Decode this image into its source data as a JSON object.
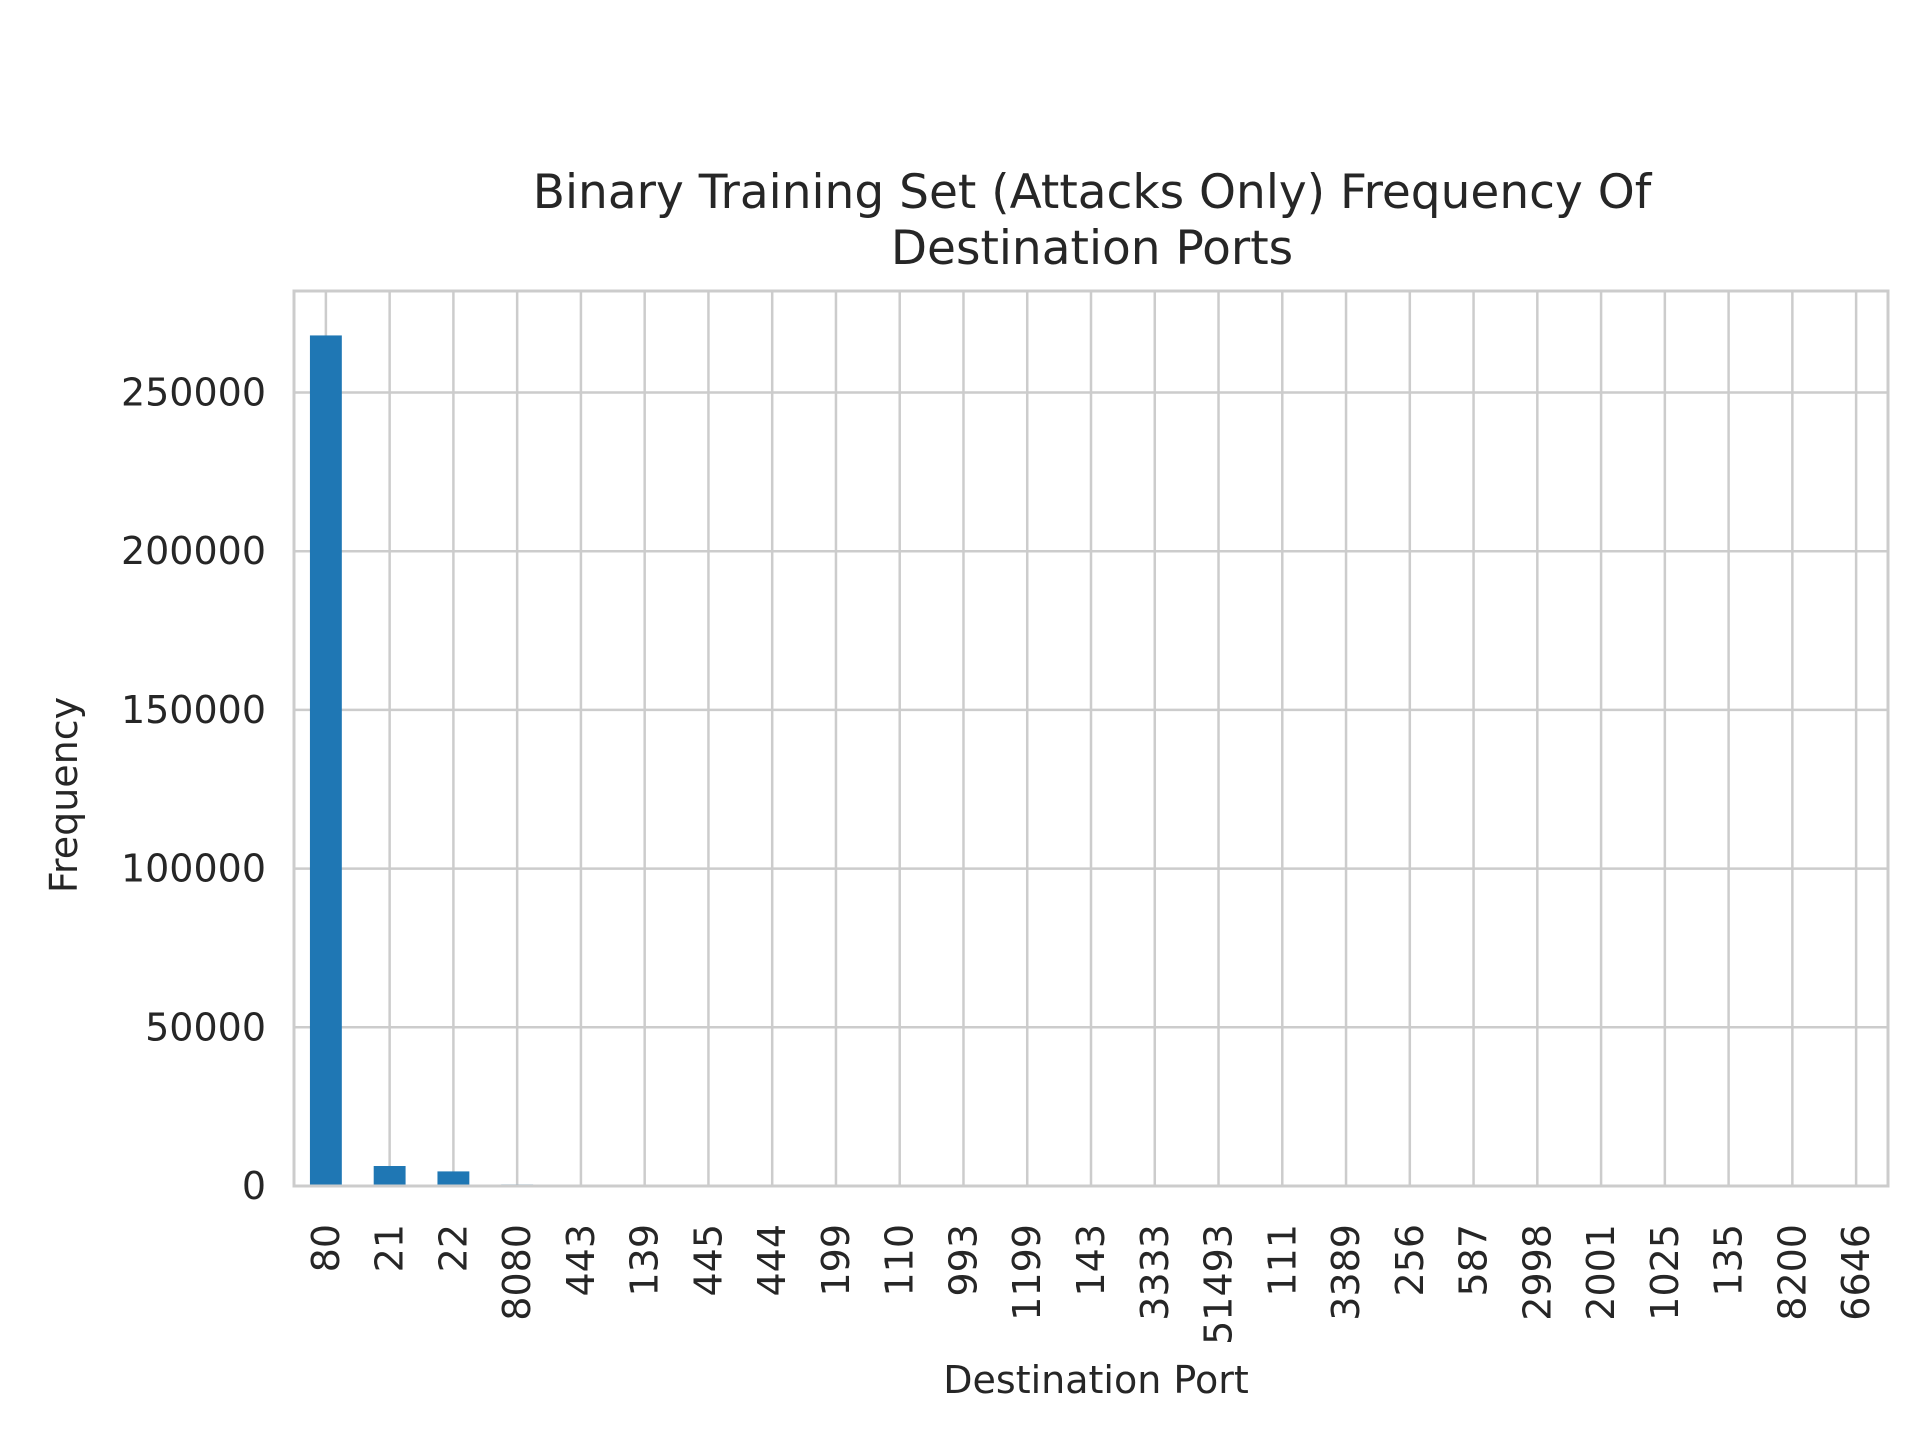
{
  "chart_data": {
    "type": "bar",
    "title_lines": [
      "Binary Training Set  (Attacks Only) Frequency Of",
      "Destination Ports"
    ],
    "xlabel": "Destination Port",
    "ylabel": "Frequency",
    "categories": [
      "80",
      "21",
      "22",
      "8080",
      "443",
      "139",
      "445",
      "444",
      "199",
      "110",
      "993",
      "1199",
      "143",
      "3333",
      "51493",
      "111",
      "3389",
      "256",
      "587",
      "2998",
      "2001",
      "1025",
      "135",
      "8200",
      "6646"
    ],
    "values": [
      268000,
      6300,
      4600,
      500,
      300,
      200,
      150,
      100,
      80,
      60,
      50,
      45,
      40,
      35,
      30,
      25,
      22,
      20,
      18,
      16,
      14,
      12,
      10,
      8,
      6
    ],
    "ylim": [
      0,
      282000
    ],
    "yticks": [
      0,
      50000,
      100000,
      150000,
      200000,
      250000
    ],
    "ytick_labels": [
      "0",
      "50000",
      "100000",
      "150000",
      "200000",
      "250000"
    ],
    "grid": true,
    "bar_color": "#1f77b4",
    "grid_color": "#cccccc",
    "frame_color": "#cccccc"
  }
}
